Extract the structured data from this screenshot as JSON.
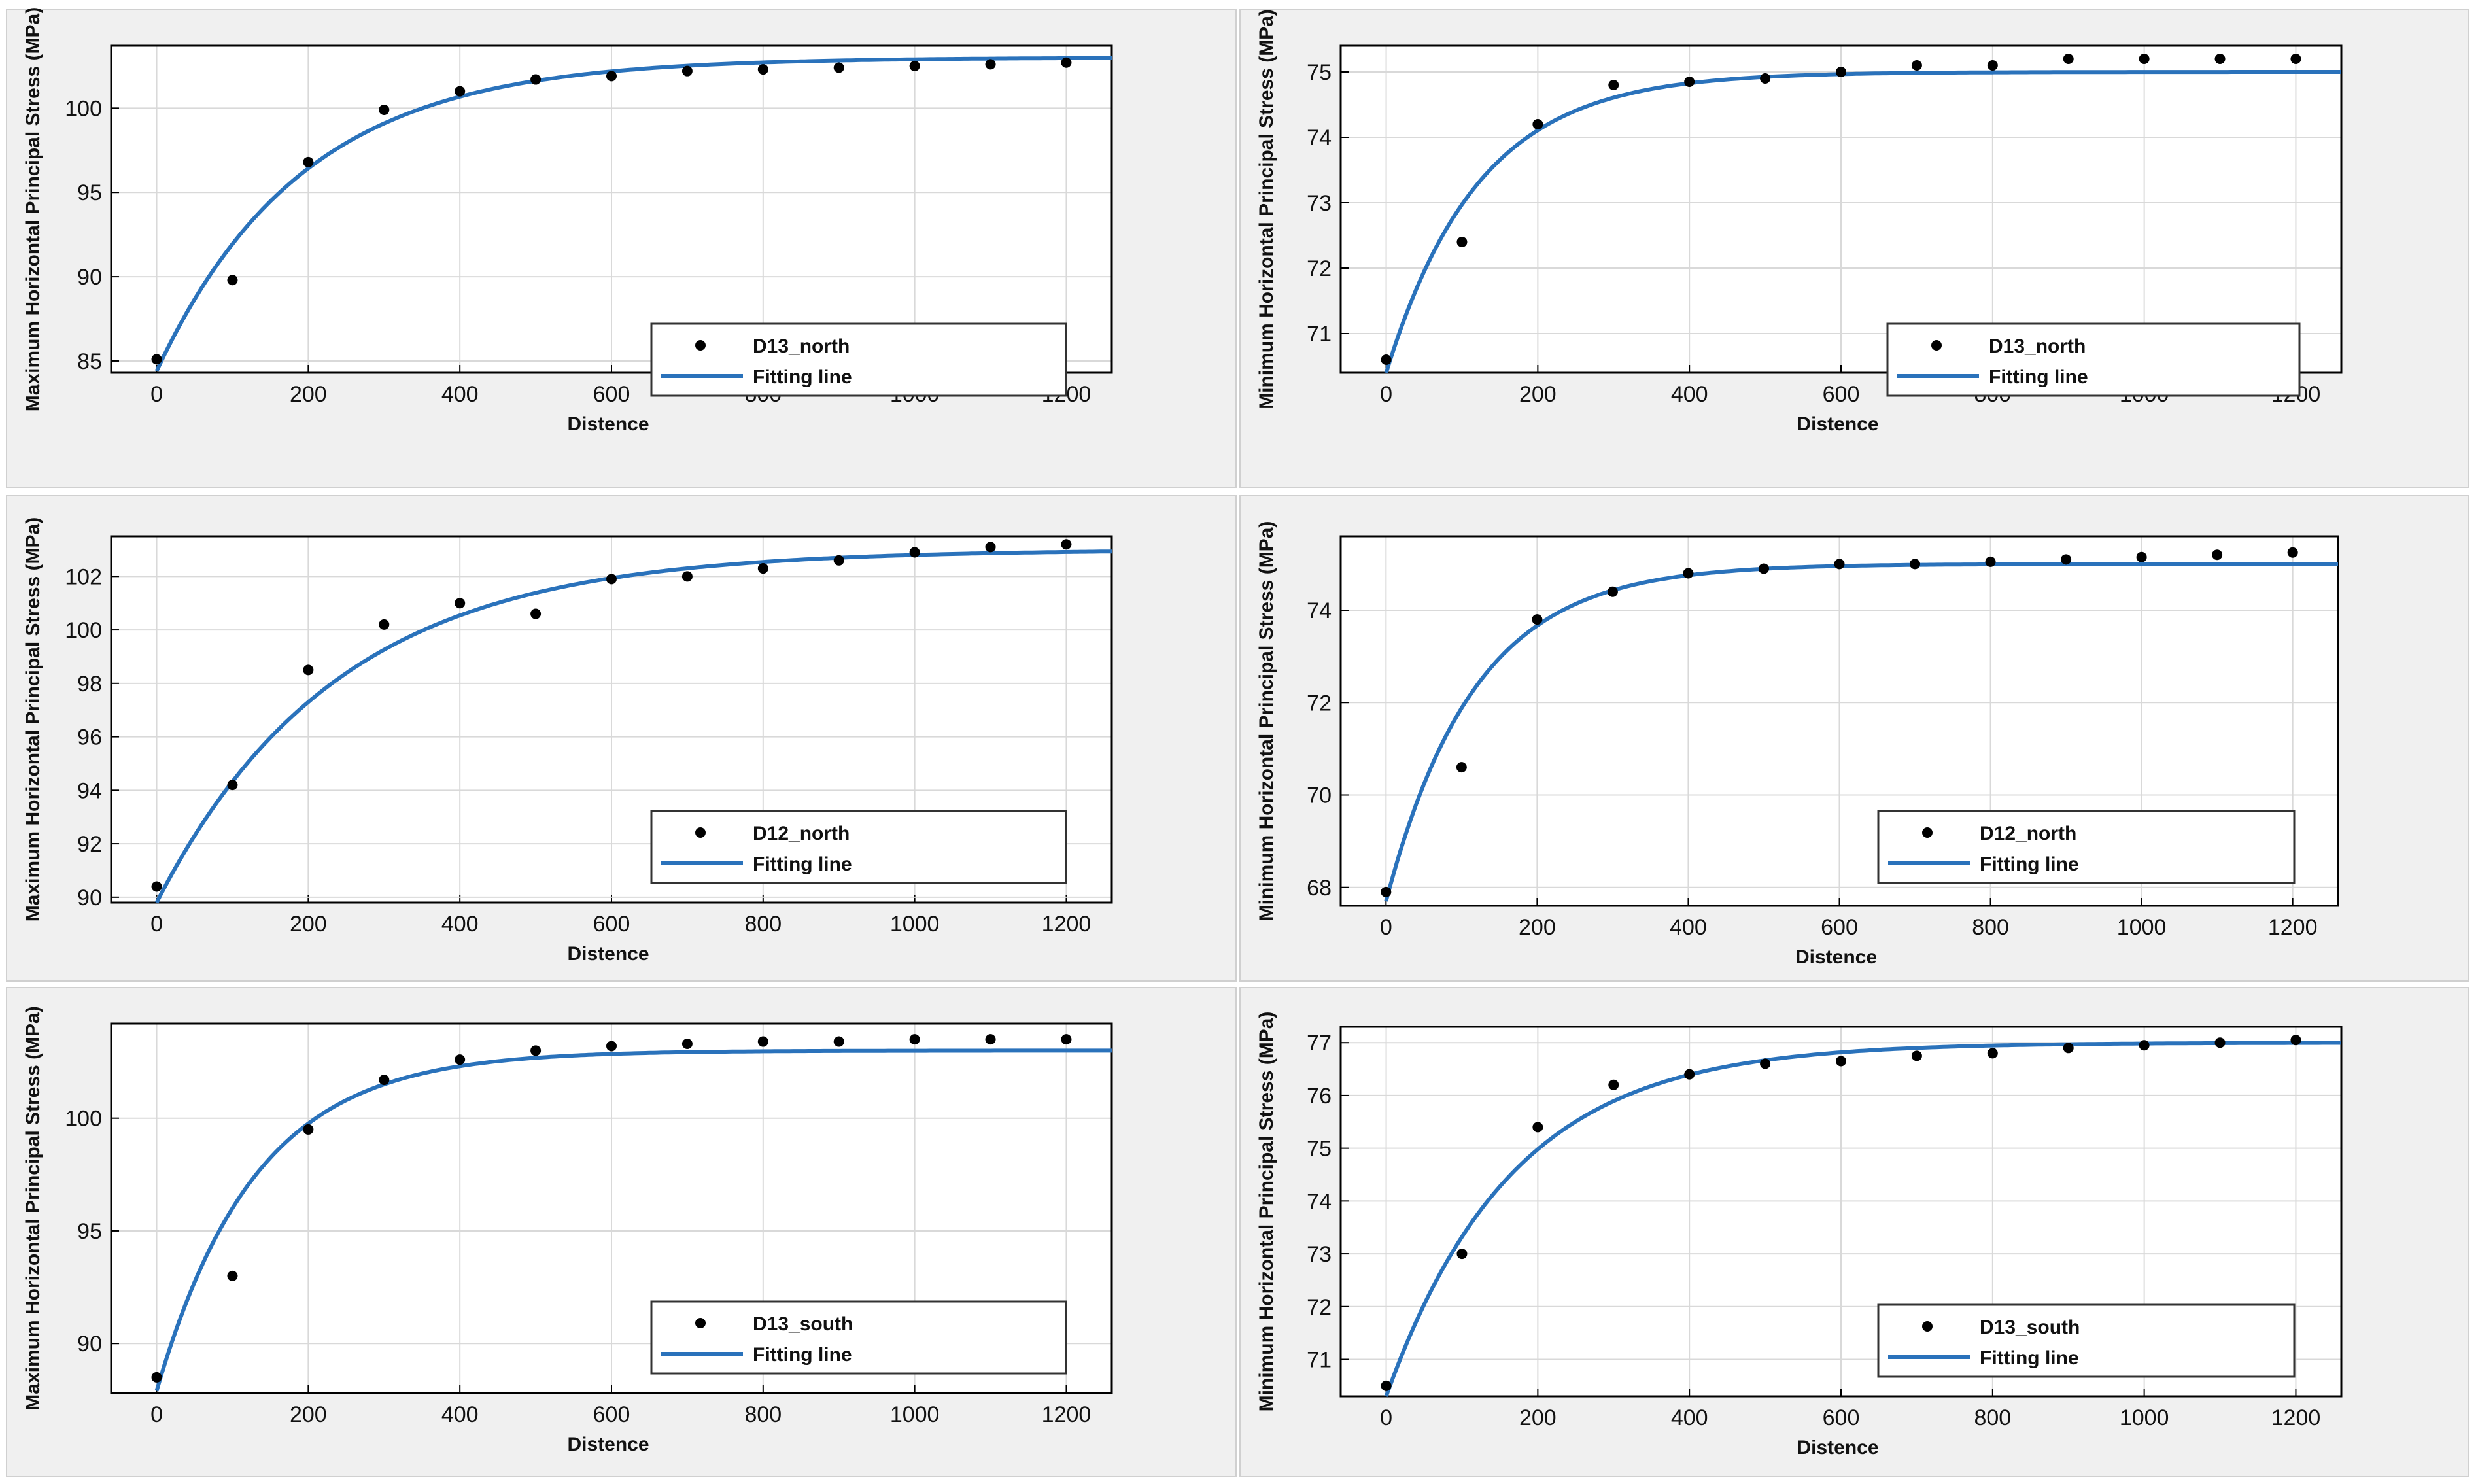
{
  "chart_data": [
    {
      "type": "scatter",
      "id": "p1",
      "ylabel": "Maximum Horizontal Principal Stress (MPa)",
      "xlabel": "Distence",
      "xlim": [
        -60,
        1260
      ],
      "ylim": [
        84.3,
        103.7
      ],
      "xticks": [
        0,
        200,
        400,
        600,
        800,
        1000,
        1200
      ],
      "yticks": [
        85,
        90,
        95,
        100
      ],
      "series": [
        {
          "name": "D13_north",
          "kind": "points",
          "x": [
            0,
            100,
            200,
            300,
            400,
            500,
            600,
            700,
            800,
            900,
            1000,
            1100,
            1200
          ],
          "y": [
            85.1,
            89.8,
            96.8,
            99.9,
            101.0,
            101.7,
            101.9,
            102.2,
            102.3,
            102.4,
            102.5,
            102.6,
            102.7
          ]
        },
        {
          "name": "Fitting line",
          "kind": "fit",
          "model": {
            "a": 103.0,
            "b": 18.6,
            "k": 0.0052
          }
        }
      ]
    },
    {
      "type": "scatter",
      "id": "p2",
      "ylabel": "Minimum Horizontal Principal Stress (MPa)",
      "xlabel": "Distence",
      "xlim": [
        -60,
        1260
      ],
      "ylim": [
        70.4,
        75.4
      ],
      "xticks": [
        0,
        200,
        400,
        600,
        800,
        1000,
        1200
      ],
      "yticks": [
        71,
        72,
        73,
        74,
        75
      ],
      "series": [
        {
          "name": "D13_north",
          "kind": "points",
          "x": [
            0,
            100,
            200,
            300,
            400,
            500,
            600,
            700,
            800,
            900,
            1000,
            1100,
            1200
          ],
          "y": [
            70.6,
            72.4,
            74.2,
            74.8,
            74.85,
            74.9,
            75.0,
            75.1,
            75.1,
            75.2,
            75.2,
            75.2,
            75.2
          ]
        },
        {
          "name": "Fitting line",
          "kind": "fit",
          "model": {
            "a": 75.0,
            "b": 4.6,
            "k": 0.0082
          }
        }
      ]
    },
    {
      "type": "scatter",
      "id": "p3",
      "ylabel": "Maximum Horizontal Principal Stress (MPa)",
      "xlabel": "Distence",
      "xlim": [
        -60,
        1260
      ],
      "ylim": [
        89.8,
        103.5
      ],
      "xticks": [
        0,
        200,
        400,
        600,
        800,
        1000,
        1200
      ],
      "yticks": [
        90,
        92,
        94,
        96,
        98,
        100,
        102
      ],
      "series": [
        {
          "name": "D12_north",
          "kind": "points",
          "x": [
            0,
            100,
            200,
            300,
            400,
            500,
            600,
            700,
            800,
            900,
            1000,
            1100,
            1200
          ],
          "y": [
            90.4,
            94.2,
            98.5,
            100.2,
            101.0,
            100.6,
            101.9,
            102.0,
            102.3,
            102.6,
            102.9,
            103.1,
            103.2
          ]
        },
        {
          "name": "Fitting line",
          "kind": "fit",
          "model": {
            "a": 103.0,
            "b": 13.2,
            "k": 0.0042
          }
        }
      ]
    },
    {
      "type": "scatter",
      "id": "p4",
      "ylabel": "Minimum Horizontal Principal Stress (MPa)",
      "xlabel": "Distence",
      "xlim": [
        -60,
        1260
      ],
      "ylim": [
        67.6,
        75.6
      ],
      "xticks": [
        0,
        200,
        400,
        600,
        800,
        1000,
        1200
      ],
      "yticks": [
        68,
        70,
        72,
        74
      ],
      "series": [
        {
          "name": "D12_north",
          "kind": "points",
          "x": [
            0,
            100,
            200,
            300,
            400,
            500,
            600,
            700,
            800,
            900,
            1000,
            1100,
            1200
          ],
          "y": [
            67.9,
            70.6,
            73.8,
            74.4,
            74.8,
            74.9,
            75.0,
            75.0,
            75.05,
            75.1,
            75.15,
            75.2,
            75.25
          ]
        },
        {
          "name": "Fitting line",
          "kind": "fit",
          "model": {
            "a": 75.0,
            "b": 7.3,
            "k": 0.0085
          }
        }
      ]
    },
    {
      "type": "scatter",
      "id": "p5",
      "ylabel": "Maximum Horizontal Principal Stress (MPa)",
      "xlabel": "Distence",
      "xlim": [
        -60,
        1260
      ],
      "ylim": [
        87.8,
        104.2
      ],
      "xticks": [
        0,
        200,
        400,
        600,
        800,
        1000,
        1200
      ],
      "yticks": [
        90,
        95,
        100
      ],
      "series": [
        {
          "name": "D13_south",
          "kind": "points",
          "x": [
            0,
            100,
            200,
            300,
            400,
            500,
            600,
            700,
            800,
            900,
            1000,
            1100,
            1200
          ],
          "y": [
            88.5,
            93.0,
            99.5,
            101.7,
            102.6,
            103.0,
            103.2,
            103.3,
            103.4,
            103.4,
            103.5,
            103.5,
            103.5
          ]
        },
        {
          "name": "Fitting line",
          "kind": "fit",
          "model": {
            "a": 103.0,
            "b": 15.1,
            "k": 0.0077
          }
        }
      ]
    },
    {
      "type": "scatter",
      "id": "p6",
      "ylabel": "Minimum Horizontal Principal Stress (MPa)",
      "xlabel": "Distence",
      "xlim": [
        -60,
        1260
      ],
      "ylim": [
        70.3,
        77.3
      ],
      "xticks": [
        0,
        200,
        400,
        600,
        800,
        1000,
        1200
      ],
      "yticks": [
        71,
        72,
        73,
        74,
        75,
        76,
        77
      ],
      "series": [
        {
          "name": "D13_south",
          "kind": "points",
          "x": [
            0,
            100,
            200,
            300,
            400,
            500,
            600,
            700,
            800,
            900,
            1000,
            1100,
            1200
          ],
          "y": [
            70.5,
            73.0,
            75.4,
            76.2,
            76.4,
            76.6,
            76.65,
            76.75,
            76.8,
            76.9,
            76.95,
            77.0,
            77.05
          ]
        },
        {
          "name": "Fitting line",
          "kind": "fit",
          "model": {
            "a": 77.0,
            "b": 6.7,
            "k": 0.006
          }
        }
      ]
    }
  ],
  "colors": {
    "fit_line": "#2a72bb",
    "points": "#000000",
    "panel_background": "#f0f0f0",
    "grid": "#d9d9d9"
  }
}
